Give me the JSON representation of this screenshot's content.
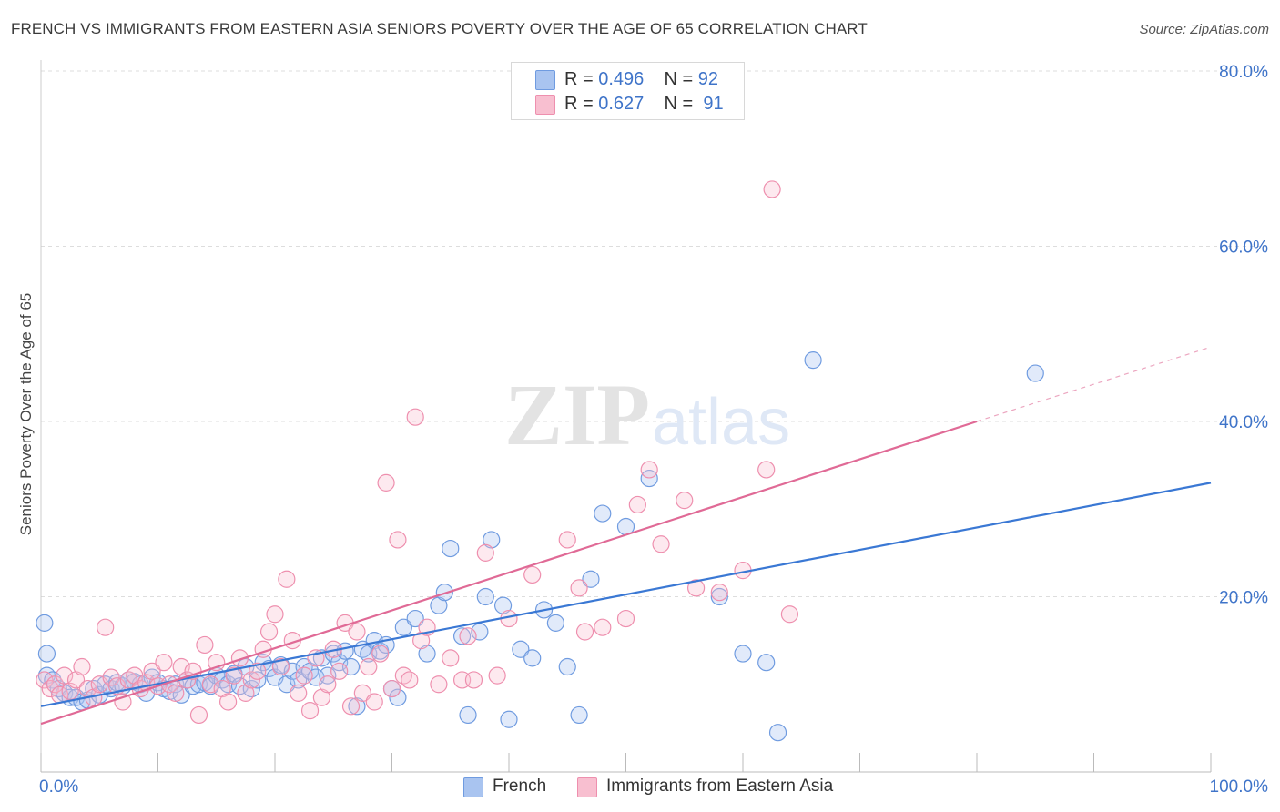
{
  "title": "FRENCH VS IMMIGRANTS FROM EASTERN ASIA SENIORS POVERTY OVER THE AGE OF 65 CORRELATION CHART",
  "source": "Source: ZipAtlas.com",
  "watermark": {
    "part1": "ZIP",
    "part2": "atlas"
  },
  "legend": {
    "rows": [
      {
        "r_label": "R = ",
        "r_value": "0.496",
        "n_label": "N = ",
        "n_value": "92",
        "color": "#a9c4f0",
        "border": "#6f9be0"
      },
      {
        "r_label": "R = ",
        "r_value": "0.627",
        "n_label": "N = ",
        "n_value": "91",
        "color": "#f8bfd0",
        "border": "#ee8fae"
      }
    ]
  },
  "bottom_legend": [
    {
      "label": "French",
      "color": "#a9c4f0",
      "border": "#6f9be0"
    },
    {
      "label": "Immigrants from Eastern Asia",
      "color": "#f8bfd0",
      "border": "#ee8fae"
    }
  ],
  "chart_data": {
    "type": "scatter",
    "xlabel": "",
    "ylabel": "Seniors Poverty Over the Age of 65",
    "xlim": [
      0,
      100
    ],
    "ylim": [
      0,
      80
    ],
    "x_tick_labels": [
      {
        "value": 0,
        "label": "0.0%"
      },
      {
        "value": 100,
        "label": "100.0%"
      }
    ],
    "y_tick_labels": [
      {
        "value": 20,
        "label": "20.0%"
      },
      {
        "value": 40,
        "label": "40.0%"
      },
      {
        "value": 60,
        "label": "60.0%"
      },
      {
        "value": 80,
        "label": "80.0%"
      }
    ],
    "grid": "horizontal dashed",
    "colors": {
      "french": "#3a78d4",
      "eastern_asia": "#e06a96",
      "axis_label": "#3f74c9"
    },
    "series": [
      {
        "name": "French",
        "trend": {
          "x": [
            0,
            100
          ],
          "y": [
            7.5,
            33.0
          ]
        },
        "points": [
          [
            0.3,
            17.0
          ],
          [
            0.5,
            13.5
          ],
          [
            0.5,
            11.0
          ],
          [
            1.0,
            10.5
          ],
          [
            1.5,
            9.5
          ],
          [
            2.0,
            9.0
          ],
          [
            2.5,
            8.5
          ],
          [
            3.0,
            8.5
          ],
          [
            3.5,
            8.0
          ],
          [
            4.0,
            8.2
          ],
          [
            4.5,
            9.5
          ],
          [
            5.0,
            8.8
          ],
          [
            5.5,
            10.0
          ],
          [
            6.0,
            9.5
          ],
          [
            6.5,
            10.2
          ],
          [
            7.0,
            9.8
          ],
          [
            7.5,
            10.5
          ],
          [
            8.0,
            10.3
          ],
          [
            8.5,
            10.0
          ],
          [
            9.0,
            9.0
          ],
          [
            9.5,
            10.8
          ],
          [
            10.0,
            10.2
          ],
          [
            10.5,
            9.5
          ],
          [
            11.0,
            9.2
          ],
          [
            11.5,
            10.0
          ],
          [
            12.0,
            8.8
          ],
          [
            12.5,
            10.5
          ],
          [
            13.0,
            9.8
          ],
          [
            13.5,
            10.0
          ],
          [
            14.0,
            10.2
          ],
          [
            14.5,
            9.8
          ],
          [
            15.0,
            11.0
          ],
          [
            15.5,
            10.5
          ],
          [
            16.0,
            10.0
          ],
          [
            16.5,
            11.2
          ],
          [
            17.0,
            9.8
          ],
          [
            17.5,
            12.0
          ],
          [
            18.0,
            9.5
          ],
          [
            18.5,
            10.5
          ],
          [
            19.0,
            12.5
          ],
          [
            19.5,
            11.8
          ],
          [
            20.0,
            10.8
          ],
          [
            20.5,
            12.2
          ],
          [
            21.0,
            10.0
          ],
          [
            21.5,
            11.5
          ],
          [
            22.0,
            10.5
          ],
          [
            22.5,
            12.0
          ],
          [
            23.0,
            11.5
          ],
          [
            23.5,
            10.8
          ],
          [
            24.0,
            13.0
          ],
          [
            24.5,
            11.0
          ],
          [
            25.0,
            13.5
          ],
          [
            25.5,
            12.5
          ],
          [
            26.0,
            13.8
          ],
          [
            26.5,
            12.0
          ],
          [
            27.0,
            7.5
          ],
          [
            27.5,
            14.0
          ],
          [
            28.0,
            13.5
          ],
          [
            28.5,
            15.0
          ],
          [
            29.0,
            13.8
          ],
          [
            29.5,
            14.5
          ],
          [
            30.0,
            9.5
          ],
          [
            30.5,
            8.5
          ],
          [
            31.0,
            16.5
          ],
          [
            32.0,
            17.5
          ],
          [
            33.0,
            13.5
          ],
          [
            34.0,
            19.0
          ],
          [
            34.5,
            20.5
          ],
          [
            35.0,
            25.5
          ],
          [
            36.0,
            15.5
          ],
          [
            36.5,
            6.5
          ],
          [
            37.5,
            16.0
          ],
          [
            38.0,
            20.0
          ],
          [
            38.5,
            26.5
          ],
          [
            39.5,
            19.0
          ],
          [
            40.0,
            6.0
          ],
          [
            41.0,
            14.0
          ],
          [
            42.0,
            13.0
          ],
          [
            43.0,
            18.5
          ],
          [
            44.0,
            17.0
          ],
          [
            45.0,
            12.0
          ],
          [
            46.0,
            6.5
          ],
          [
            47.0,
            22.0
          ],
          [
            48.0,
            29.5
          ],
          [
            50.0,
            28.0
          ],
          [
            52.0,
            33.5
          ],
          [
            58.0,
            20.0
          ],
          [
            60.0,
            13.5
          ],
          [
            62.0,
            12.5
          ],
          [
            63.0,
            4.5
          ],
          [
            66.0,
            47.0
          ],
          [
            85.0,
            45.5
          ]
        ]
      },
      {
        "name": "Immigrants from Eastern Asia",
        "trend": {
          "x": [
            0,
            80
          ],
          "y": [
            5.5,
            40.0
          ]
        },
        "trend_ext": {
          "x": [
            80,
            100
          ],
          "y": [
            40.0,
            48.5
          ]
        },
        "points": [
          [
            0.3,
            10.5
          ],
          [
            0.8,
            9.5
          ],
          [
            1.2,
            10.0
          ],
          [
            1.6,
            8.8
          ],
          [
            2.0,
            11.0
          ],
          [
            2.5,
            9.2
          ],
          [
            3.0,
            10.5
          ],
          [
            3.5,
            12.0
          ],
          [
            4.0,
            9.5
          ],
          [
            4.5,
            8.5
          ],
          [
            5.0,
            10.0
          ],
          [
            5.5,
            16.5
          ],
          [
            6.0,
            10.8
          ],
          [
            6.5,
            9.8
          ],
          [
            7.0,
            8.0
          ],
          [
            7.5,
            10.5
          ],
          [
            8.0,
            11.0
          ],
          [
            8.5,
            9.5
          ],
          [
            9.0,
            10.2
          ],
          [
            9.5,
            11.5
          ],
          [
            10.0,
            9.8
          ],
          [
            10.5,
            12.5
          ],
          [
            11.0,
            10.0
          ],
          [
            11.5,
            9.0
          ],
          [
            12.0,
            12.0
          ],
          [
            12.5,
            10.5
          ],
          [
            13.0,
            11.5
          ],
          [
            13.5,
            6.5
          ],
          [
            14.0,
            14.5
          ],
          [
            14.5,
            10.0
          ],
          [
            15.0,
            12.5
          ],
          [
            15.5,
            9.5
          ],
          [
            16.0,
            8.0
          ],
          [
            16.5,
            11.0
          ],
          [
            17.0,
            13.0
          ],
          [
            17.5,
            9.0
          ],
          [
            18.0,
            10.5
          ],
          [
            18.5,
            11.5
          ],
          [
            19.0,
            14.0
          ],
          [
            19.5,
            16.0
          ],
          [
            20.0,
            18.0
          ],
          [
            20.5,
            12.0
          ],
          [
            21.0,
            22.0
          ],
          [
            21.5,
            15.0
          ],
          [
            22.0,
            9.0
          ],
          [
            22.5,
            11.0
          ],
          [
            23.0,
            7.0
          ],
          [
            23.5,
            13.0
          ],
          [
            24.0,
            8.5
          ],
          [
            24.5,
            10.0
          ],
          [
            25.0,
            14.0
          ],
          [
            25.5,
            11.5
          ],
          [
            26.0,
            17.0
          ],
          [
            26.5,
            7.5
          ],
          [
            27.0,
            16.0
          ],
          [
            27.5,
            9.0
          ],
          [
            28.0,
            12.0
          ],
          [
            28.5,
            8.0
          ],
          [
            29.0,
            13.5
          ],
          [
            29.5,
            33.0
          ],
          [
            30.0,
            9.5
          ],
          [
            30.5,
            26.5
          ],
          [
            31.0,
            11.0
          ],
          [
            31.5,
            10.5
          ],
          [
            32.0,
            40.5
          ],
          [
            32.5,
            15.0
          ],
          [
            33.0,
            16.5
          ],
          [
            34.0,
            10.0
          ],
          [
            35.0,
            13.0
          ],
          [
            36.0,
            10.5
          ],
          [
            36.5,
            15.5
          ],
          [
            37.0,
            10.5
          ],
          [
            38.0,
            25.0
          ],
          [
            39.0,
            11.0
          ],
          [
            40.0,
            17.5
          ],
          [
            42.0,
            22.5
          ],
          [
            45.0,
            26.5
          ],
          [
            46.0,
            21.0
          ],
          [
            46.5,
            16.0
          ],
          [
            48.0,
            16.5
          ],
          [
            50.0,
            17.5
          ],
          [
            51.0,
            30.5
          ],
          [
            52.0,
            34.5
          ],
          [
            53.0,
            26.0
          ],
          [
            55.0,
            31.0
          ],
          [
            56.0,
            21.0
          ],
          [
            58.0,
            20.5
          ],
          [
            60.0,
            23.0
          ],
          [
            62.0,
            34.5
          ],
          [
            64.0,
            18.0
          ],
          [
            62.5,
            66.5
          ]
        ]
      }
    ]
  }
}
